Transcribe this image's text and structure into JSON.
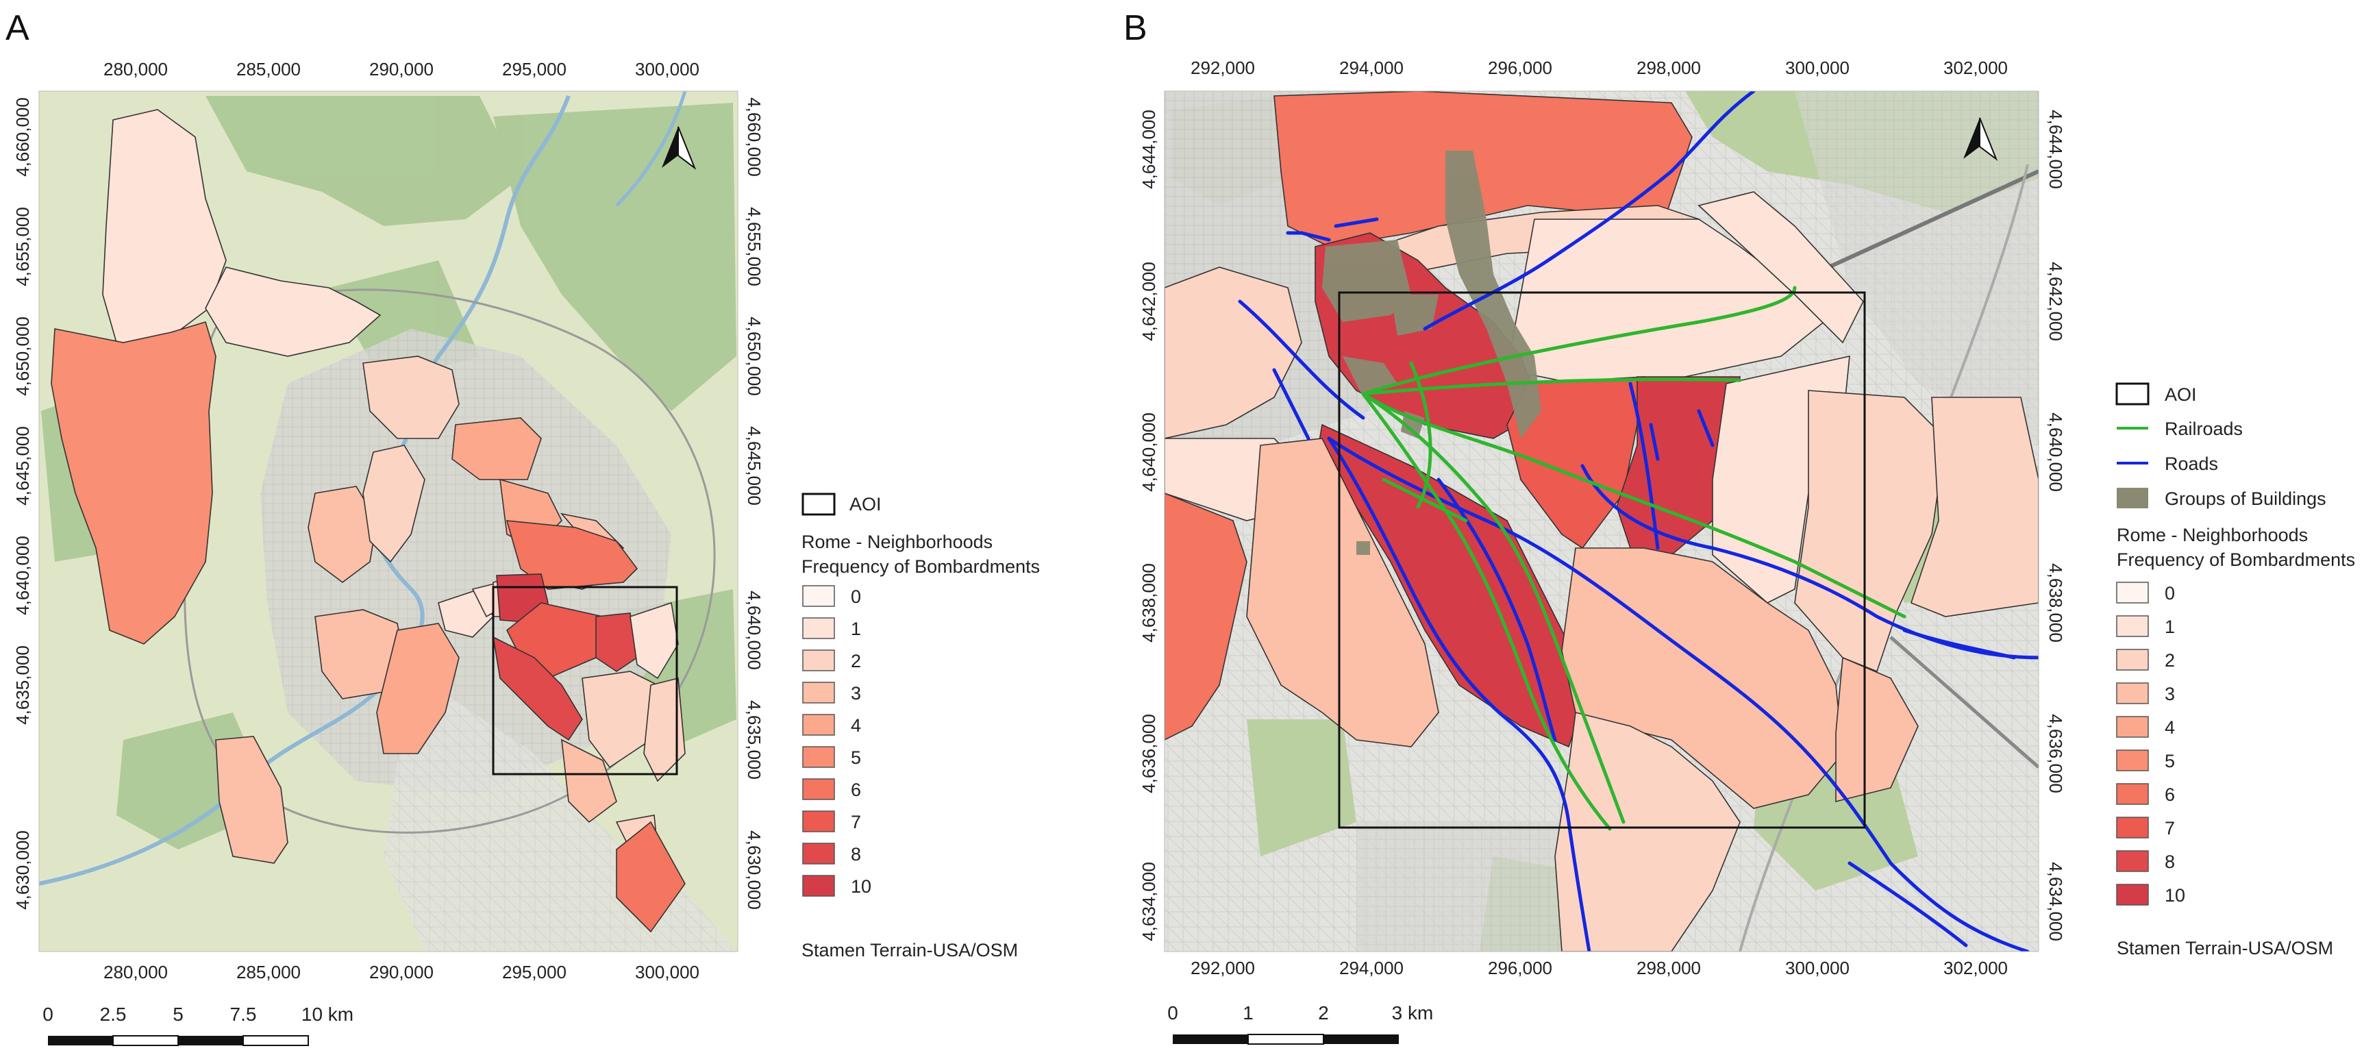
{
  "panels": [
    {
      "label": "A",
      "ticks_top": [
        "280,000",
        "285,000",
        "290,000",
        "295,000",
        "300,000"
      ],
      "ticks_bottom": [
        "280,000",
        "285,000",
        "290,000",
        "295,000",
        "300,000"
      ],
      "ticks_left": [
        "4,660,000",
        "4,655,000",
        "4,650,000",
        "4,645,000",
        "4,640,000",
        "4,635,000",
        "4,630,000"
      ],
      "ticks_right": [
        "4,660,000",
        "4,655,000",
        "4,650,000",
        "4,645,000",
        "4,640,000",
        "4,635,000",
        "4,630,000"
      ],
      "scale_labels": [
        "0",
        "2.5",
        "5",
        "7.5",
        "10 km"
      ],
      "legend": {
        "aoi": "AOI",
        "title_line1": "Rome - Neighborhoods",
        "title_line2": "Frequency of Bombardments",
        "classes": [
          {
            "label": "0",
            "color": "#fff5f0"
          },
          {
            "label": "1",
            "color": "#fde3d8"
          },
          {
            "label": "2",
            "color": "#fcd4c4"
          },
          {
            "label": "3",
            "color": "#fcbfa8"
          },
          {
            "label": "4",
            "color": "#fba88d"
          },
          {
            "label": "5",
            "color": "#f98f74"
          },
          {
            "label": "6",
            "color": "#f47560"
          },
          {
            "label": "7",
            "color": "#ec5a50"
          },
          {
            "label": "8",
            "color": "#e04a4c"
          },
          {
            "label": "10",
            "color": "#d43d48"
          }
        ],
        "source": "Stamen Terrain-USA/OSM"
      }
    },
    {
      "label": "B",
      "ticks_top": [
        "292,000",
        "294,000",
        "296,000",
        "298,000",
        "300,000",
        "302,000"
      ],
      "ticks_bottom": [
        "292,000",
        "294,000",
        "296,000",
        "298,000",
        "300,000",
        "302,000"
      ],
      "ticks_left": [
        "4,644,000",
        "4,642,000",
        "4,640,000",
        "4,638,000",
        "4,636,000",
        "4,634,000"
      ],
      "ticks_right": [
        "4,644,000",
        "4,642,000",
        "4,640,000",
        "4,638,000",
        "4,636,000",
        "4,634,000"
      ],
      "scale_labels": [
        "0",
        "1",
        "2",
        "3 km"
      ],
      "legend": {
        "aoi": "AOI",
        "railroads": "Railroads",
        "roads": "Roads",
        "buildings": "Groups of Buildings",
        "title_line1": "Rome - Neighborhoods",
        "title_line2": "Frequency of Bombardments",
        "classes": [
          {
            "label": "0",
            "color": "#fff5f0"
          },
          {
            "label": "1",
            "color": "#fde3d8"
          },
          {
            "label": "2",
            "color": "#fcd4c4"
          },
          {
            "label": "3",
            "color": "#fcbfa8"
          },
          {
            "label": "4",
            "color": "#fba88d"
          },
          {
            "label": "5",
            "color": "#f98f74"
          },
          {
            "label": "6",
            "color": "#f47560"
          },
          {
            "label": "7",
            "color": "#ec5a50"
          },
          {
            "label": "8",
            "color": "#e04a4c"
          },
          {
            "label": "10",
            "color": "#d43d48"
          }
        ],
        "source": "Stamen Terrain-USA/OSM"
      }
    }
  ],
  "colors": {
    "railroad": "#2fb52f",
    "road": "#1426e0",
    "buildings": "#8a8a72",
    "terrain_base": "#dfe6c7",
    "terrain_green": "#a9c792",
    "urban": "#d3d3cf",
    "water": "#8fb7d6"
  }
}
